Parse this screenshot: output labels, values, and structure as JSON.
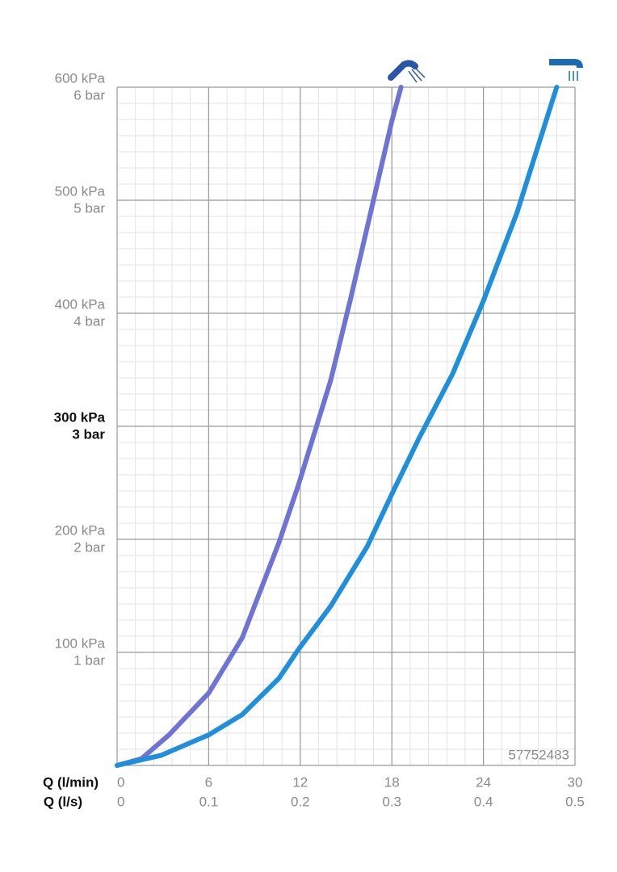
{
  "chart_data": {
    "type": "line",
    "x_label": "Q (l/min)",
    "x2_label": "Q (l/s)",
    "annotation": "57752483",
    "xlim": [
      0,
      30
    ],
    "xticks": [
      0,
      6,
      12,
      18,
      24,
      30
    ],
    "x2ticks": [
      0,
      0.1,
      0.2,
      0.3,
      0.4,
      0.5
    ],
    "ylim": [
      0,
      600
    ],
    "yticks": [
      {
        "value": 100,
        "label": "100 kPa"
      },
      {
        "value": 200,
        "label": "200 kPa"
      },
      {
        "value": 300,
        "label": "300 kPa"
      },
      {
        "value": 400,
        "label": "400 kPa"
      },
      {
        "value": 500,
        "label": "500 kPa"
      },
      {
        "value": 600,
        "label": "600 kPa"
      }
    ],
    "ybar_ticks": [
      {
        "value": 1,
        "label": "1 bar"
      },
      {
        "value": 2,
        "label": "2 bar"
      },
      {
        "value": 3,
        "label": "3 bar"
      },
      {
        "value": 4,
        "label": "4 bar"
      },
      {
        "value": 5,
        "label": "5 bar"
      },
      {
        "value": 6,
        "label": "6 bar"
      }
    ],
    "bold_ytick": 300,
    "grid": true,
    "series": [
      {
        "color": "#6f74d4",
        "x": [
          0,
          1.6,
          3.4,
          6,
          8.2,
          10.6,
          11.9,
          14,
          15.3,
          16.9,
          18,
          18.6
        ],
        "values": [
          0,
          6,
          27,
          64,
          113,
          197,
          249,
          341,
          413,
          506,
          570,
          600
        ]
      },
      {
        "color": "#1f8fdc",
        "x": [
          0,
          2.9,
          6,
          8.2,
          10.6,
          11.9,
          14,
          16.4,
          18,
          19.8,
          22,
          24,
          26.2,
          28.8
        ],
        "values": [
          0,
          9,
          27,
          45,
          77,
          103,
          141,
          194,
          240,
          290,
          347,
          411,
          489,
          600
        ]
      }
    ]
  }
}
